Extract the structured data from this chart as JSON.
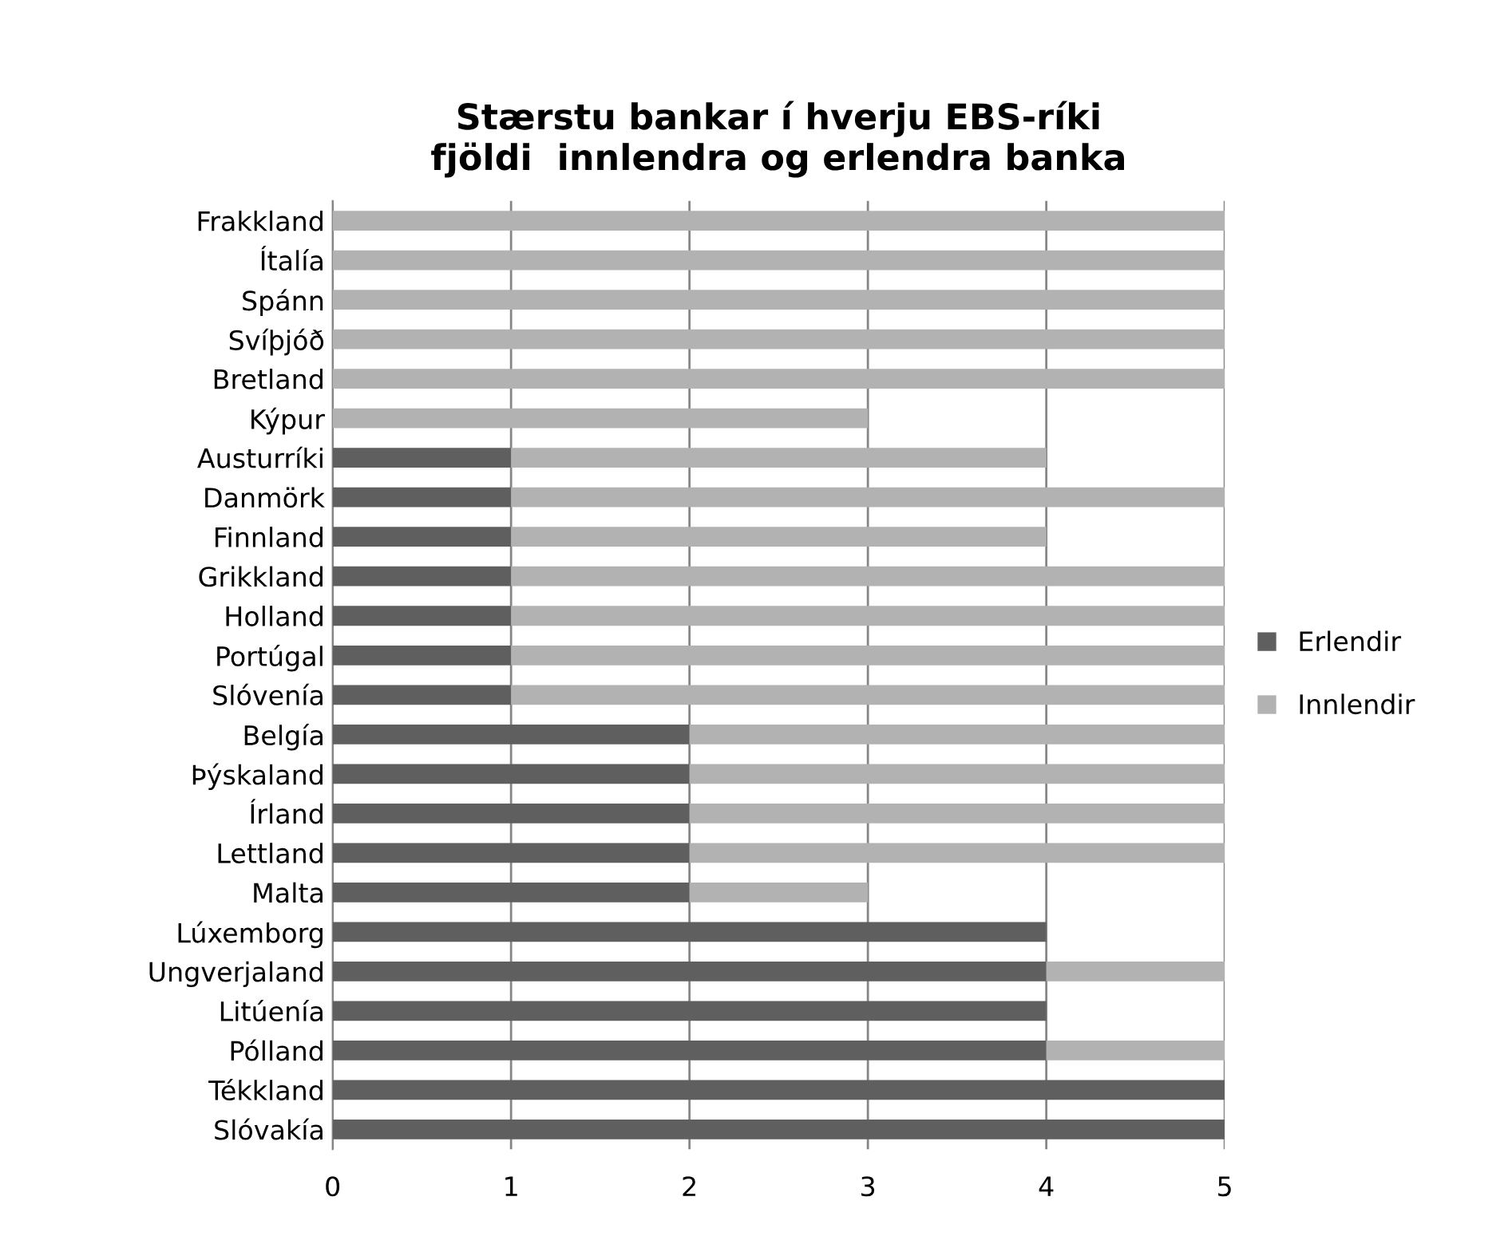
{
  "chart_data": {
    "type": "bar",
    "orientation": "horizontal",
    "stacked": true,
    "title": "Stærstu bankar í hverju EBS-ríki\nfjöldi  innlendra og erlendra banka",
    "categories": [
      "Frakkland",
      "Ítalía",
      "Spánn",
      "Svíþjóð",
      "Bretland",
      "Kýpur",
      "Austurríki",
      "Danmörk",
      "Finnland",
      "Grikkland",
      "Holland",
      "Portúgal",
      "Slóvenía",
      "Belgía",
      "Þýskaland",
      "Írland",
      "Lettland",
      "Malta",
      "Lúxemborg",
      "Ungverjaland",
      "Litúenía",
      "Pólland",
      "Tékkland",
      "Slóvakía"
    ],
    "series": [
      {
        "name": "Erlendir",
        "color": "#5f5f5f",
        "values": [
          0,
          0,
          0,
          0,
          0,
          0,
          1,
          1,
          1,
          1,
          1,
          1,
          1,
          2,
          2,
          2,
          2,
          2,
          4,
          4,
          4,
          4,
          5,
          5
        ]
      },
      {
        "name": "Innlendir",
        "color": "#b2b2b2",
        "values": [
          5,
          5,
          5,
          5,
          5,
          3,
          3,
          4,
          3,
          4,
          4,
          4,
          4,
          3,
          3,
          3,
          3,
          1,
          0,
          1,
          0,
          1,
          0,
          0
        ]
      }
    ],
    "xlim": [
      0,
      5
    ],
    "xticks": [
      0,
      1,
      2,
      3,
      4,
      5
    ],
    "grid": "x",
    "legend": "right"
  }
}
